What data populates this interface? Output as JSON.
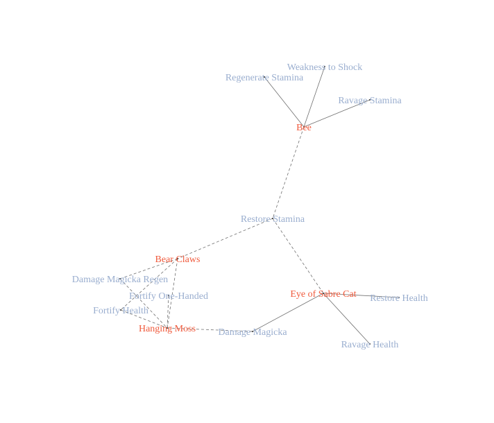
{
  "colors": {
    "ingredient": "#f05a3c",
    "effect": "#9aaecf",
    "edge": "#6e6e6e"
  },
  "nodes": [
    {
      "id": "bee",
      "label": "Bee",
      "kind": "ingredient"
    },
    {
      "id": "regenerate-stamina",
      "label": "Regenerate Stamina",
      "kind": "effect"
    },
    {
      "id": "weakness-to-shock",
      "label": "Weakness to Shock",
      "kind": "effect"
    },
    {
      "id": "ravage-stamina",
      "label": "Ravage Stamina",
      "kind": "effect"
    },
    {
      "id": "restore-stamina",
      "label": "Restore Stamina",
      "kind": "effect"
    },
    {
      "id": "bear-claws",
      "label": "Bear Claws",
      "kind": "ingredient"
    },
    {
      "id": "damage-magicka-regen",
      "label": "Damage Magicka Regen",
      "kind": "effect"
    },
    {
      "id": "fortify-one-handed",
      "label": "Fortify One-Handed",
      "kind": "effect"
    },
    {
      "id": "fortify-health",
      "label": "Fortify Health",
      "kind": "effect"
    },
    {
      "id": "hanging-moss",
      "label": "Hanging Moss",
      "kind": "ingredient"
    },
    {
      "id": "damage-magicka",
      "label": "Damage Magicka",
      "kind": "effect"
    },
    {
      "id": "eye-of-sabre-cat",
      "label": "Eye of Sabre Cat",
      "kind": "ingredient"
    },
    {
      "id": "restore-health",
      "label": "Restore Health",
      "kind": "effect"
    },
    {
      "id": "ravage-health",
      "label": "Ravage Health",
      "kind": "effect"
    }
  ],
  "edges": [
    {
      "from": "bee",
      "to": "regenerate-stamina",
      "style": "solid"
    },
    {
      "from": "bee",
      "to": "weakness-to-shock",
      "style": "solid"
    },
    {
      "from": "bee",
      "to": "ravage-stamina",
      "style": "solid"
    },
    {
      "from": "bee",
      "to": "restore-stamina",
      "style": "dashed"
    },
    {
      "from": "restore-stamina",
      "to": "bear-claws",
      "style": "dashed"
    },
    {
      "from": "restore-stamina",
      "to": "eye-of-sabre-cat",
      "style": "dashed"
    },
    {
      "from": "bear-claws",
      "to": "damage-magicka-regen",
      "style": "dashed"
    },
    {
      "from": "bear-claws",
      "to": "fortify-health",
      "style": "dashed"
    },
    {
      "from": "bear-claws",
      "to": "hanging-moss",
      "style": "dashed"
    },
    {
      "from": "damage-magicka-regen",
      "to": "hanging-moss",
      "style": "dashed"
    },
    {
      "from": "fortify-one-handed",
      "to": "hanging-moss",
      "style": "dashed"
    },
    {
      "from": "fortify-health",
      "to": "hanging-moss",
      "style": "dashed"
    },
    {
      "from": "hanging-moss",
      "to": "damage-magicka",
      "style": "dashed"
    },
    {
      "from": "eye-of-sabre-cat",
      "to": "damage-magicka",
      "style": "solid"
    },
    {
      "from": "eye-of-sabre-cat",
      "to": "restore-health",
      "style": "solid"
    },
    {
      "from": "eye-of-sabre-cat",
      "to": "ravage-health",
      "style": "solid"
    }
  ]
}
